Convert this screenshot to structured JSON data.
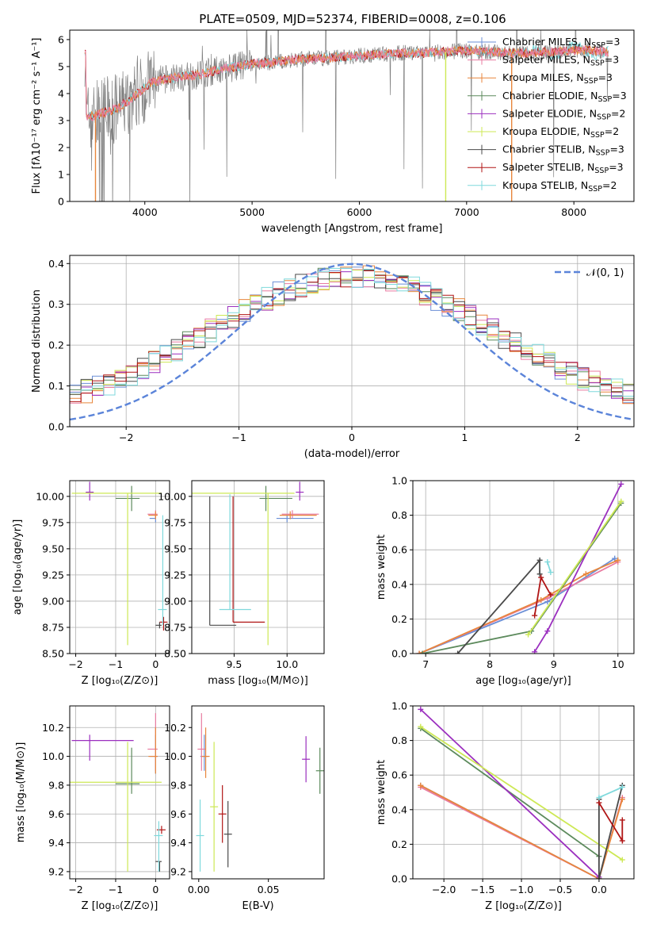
{
  "figure_title": "PLATE=0509, MJD=52374, FIBERID=0008, z=0.106",
  "colors": {
    "chabrier_miles": "#6b8fd6",
    "salpeter_miles": "#e87ba0",
    "kroupa_miles": "#e8863c",
    "chabrier_elodie": "#5c8a5c",
    "salpeter_elodie": "#9b2fbf",
    "kroupa_elodie": "#cde854",
    "chabrier_stelib": "#4a4a4a",
    "salpeter_stelib": "#b01515",
    "kroupa_stelib": "#7fd9dc",
    "data_spectrum": "#808080",
    "normal_curve": "#5b84d9",
    "grid": "#b0b0b0"
  },
  "chart_data": [
    {
      "type": "line",
      "xlabel": "wavelength [Angstrom, rest frame]",
      "ylabel": "Flux [fλ10⁻¹⁷ erg cm⁻² s⁻¹ A⁻¹]",
      "xlim": [
        3300,
        8560
      ],
      "ylim": [
        0,
        6.35
      ],
      "xticks": [
        "4000",
        "5000",
        "6000",
        "7000",
        "8000"
      ],
      "yticks": [
        "0",
        "1",
        "2",
        "3",
        "4",
        "5",
        "6"
      ],
      "grid": false,
      "legend_position": "right",
      "legend": [
        {
          "label": "Chabrier MILES, N",
          "sub": "SSP",
          "suffix": "=3",
          "key": "chabrier_miles"
        },
        {
          "label": "Salpeter MILES, N",
          "sub": "SSP",
          "suffix": "=3",
          "key": "salpeter_miles"
        },
        {
          "label": "Kroupa MILES, N",
          "sub": "SSP",
          "suffix": "=3",
          "key": "kroupa_miles"
        },
        {
          "label": "Chabrier ELODIE, N",
          "sub": "SSP",
          "suffix": "=3",
          "key": "chabrier_elodie"
        },
        {
          "label": "Salpeter ELODIE, N",
          "sub": "SSP",
          "suffix": "=2",
          "key": "salpeter_elodie"
        },
        {
          "label": "Kroupa ELODIE, N",
          "sub": "SSP",
          "suffix": "=2",
          "key": "kroupa_elodie"
        },
        {
          "label": "Chabrier STELIB, N",
          "sub": "SSP",
          "suffix": "=3",
          "key": "chabrier_stelib"
        },
        {
          "label": "Salpeter STELIB, N",
          "sub": "SSP",
          "suffix": "=3",
          "key": "salpeter_stelib"
        },
        {
          "label": "Kroupa STELIB, N",
          "sub": "SSP",
          "suffix": "=2",
          "key": "kroupa_stelib"
        }
      ],
      "continuum": {
        "x": [
          3450,
          3550,
          3650,
          3750,
          3850,
          3950,
          4050,
          4150,
          4300,
          4500,
          4700,
          4850,
          5000,
          5200,
          5400,
          5600,
          5800,
          6000,
          6200,
          6400,
          6600,
          6800,
          7000,
          7200,
          7400,
          7600,
          7800,
          8000,
          8200,
          8300
        ],
        "y": [
          3.1,
          3.2,
          3.35,
          3.45,
          3.75,
          4.05,
          4.4,
          4.5,
          4.6,
          4.7,
          4.9,
          5.0,
          5.1,
          5.15,
          5.25,
          5.3,
          5.35,
          5.4,
          5.45,
          5.5,
          5.5,
          5.55,
          5.6,
          5.55,
          5.5,
          5.5,
          5.55,
          5.6,
          5.6,
          5.55
        ]
      },
      "models_plotted": [
        "salpeter_stelib",
        "kroupa_stelib",
        "kroupa_miles",
        "salpeter_miles"
      ],
      "spikes": [
        {
          "x": 6805,
          "y": 0,
          "key": "kroupa_elodie"
        },
        {
          "x": 7420,
          "y": 0,
          "key": "kroupa_miles"
        },
        {
          "x": 3540,
          "y": 0,
          "key": "kroupa_miles"
        }
      ]
    },
    {
      "type": "histogram",
      "xlabel": "(data-model)/error",
      "ylabel": "Normed distribution",
      "xlim": [
        -2.5,
        2.5
      ],
      "ylim": [
        0,
        0.42
      ],
      "xticks": [
        "−2",
        "−1",
        "0",
        "1",
        "2"
      ],
      "yticks": [
        "0.0",
        "0.1",
        "0.2",
        "0.3",
        "0.4"
      ],
      "grid": true,
      "legend_position": "top-right",
      "legend": [
        {
          "label": "𝒩(0, 1)",
          "key": "normal_curve"
        }
      ],
      "bin_width": 0.1,
      "bins_from": -2.5,
      "series_keys": [
        "chabrier_miles",
        "salpeter_miles",
        "kroupa_miles",
        "chabrier_elodie",
        "salpeter_elodie",
        "kroupa_elodie",
        "chabrier_stelib",
        "salpeter_stelib",
        "kroupa_stelib"
      ],
      "curve": {
        "type": "normal",
        "mean": 0,
        "sigma": 1
      }
    },
    {
      "type": "errorbar",
      "xlabel": "Z [log₁₀(Z/Z⊙)]",
      "ylabel": "age  [log₁₀(age/yr)]",
      "xlim": [
        -2.15,
        0.35
      ],
      "ylim": [
        8.5,
        10.15
      ],
      "xticks": [
        "−2",
        "−1",
        "0"
      ],
      "yticks": [
        "8.50",
        "8.75",
        "9.00",
        "9.25",
        "9.50",
        "9.75",
        "10.00"
      ],
      "grid": true,
      "points": [
        {
          "key": "chabrier_miles",
          "x": 0.0,
          "y": 9.79,
          "xerr": [
            0.15,
            0.0
          ],
          "yerr": [
            0,
            0
          ]
        },
        {
          "key": "salpeter_miles",
          "x": 0.0,
          "y": 9.83,
          "xerr": [
            0.2,
            0.05
          ],
          "yerr": [
            0,
            0
          ]
        },
        {
          "key": "kroupa_miles",
          "x": 0.0,
          "y": 9.82,
          "xerr": [
            0.18,
            0.05
          ],
          "yerr": [
            0,
            0
          ]
        },
        {
          "key": "chabrier_elodie",
          "x": -0.6,
          "y": 9.98,
          "xerr": [
            0.4,
            0.2
          ],
          "yerr": [
            0.12,
            0.12
          ]
        },
        {
          "key": "salpeter_elodie",
          "x": -1.65,
          "y": 10.04,
          "xerr": [
            0,
            0
          ],
          "yerr": [
            0.08,
            0.1
          ]
        },
        {
          "key": "kroupa_elodie",
          "x": -0.7,
          "y": 10.03,
          "xerr": [
            1.4,
            0.85
          ],
          "yerr": [
            1.45,
            0.0
          ]
        },
        {
          "key": "chabrier_stelib",
          "x": 0.1,
          "y": 8.77,
          "xerr": [
            0.1,
            0.05
          ],
          "yerr": [
            0.03,
            0.03
          ]
        },
        {
          "key": "salpeter_stelib",
          "x": 0.2,
          "y": 8.8,
          "xerr": [
            0,
            0
          ],
          "yerr": [
            0.08,
            0.05
          ]
        },
        {
          "key": "kroupa_stelib",
          "x": 0.18,
          "y": 8.92,
          "xerr": [
            0.12,
            0.1
          ],
          "yerr": [
            0.15,
            0.9
          ]
        }
      ]
    },
    {
      "type": "errorbar",
      "xlabel": "mass [log₁₀(M/M⊙)]",
      "ylabel": "",
      "xlim": [
        9.1,
        10.35
      ],
      "ylim": [
        8.5,
        10.15
      ],
      "xticks": [
        "9.5",
        "10.0"
      ],
      "yticks": [
        "8.50",
        "8.75",
        "9.00",
        "9.25",
        "9.50",
        "9.75",
        "10.00"
      ],
      "grid": true,
      "points": [
        {
          "key": "chabrier_miles",
          "x": 10.0,
          "y": 9.79,
          "xerr": [
            0.1,
            0.25
          ],
          "yerr": [
            0,
            0
          ]
        },
        {
          "key": "salpeter_miles",
          "x": 10.05,
          "y": 9.83,
          "xerr": [
            0.1,
            0.25
          ],
          "yerr": [
            0,
            0
          ]
        },
        {
          "key": "kroupa_miles",
          "x": 10.03,
          "y": 9.82,
          "xerr": [
            0.1,
            0.25
          ],
          "yerr": [
            0,
            0
          ]
        },
        {
          "key": "chabrier_elodie",
          "x": 9.8,
          "y": 9.98,
          "xerr": [
            0.06,
            0.25
          ],
          "yerr": [
            0.12,
            0.12
          ]
        },
        {
          "key": "salpeter_elodie",
          "x": 10.12,
          "y": 10.04,
          "xerr": [
            0,
            0
          ],
          "yerr": [
            0.08,
            0.1
          ]
        },
        {
          "key": "kroupa_elodie",
          "x": 9.82,
          "y": 10.03,
          "xerr": [
            0.72,
            0.25
          ],
          "yerr": [
            1.45,
            0.0
          ]
        },
        {
          "key": "chabrier_stelib",
          "x": 9.27,
          "y": 8.77,
          "xerr": [
            0.0,
            0.25
          ],
          "yerr": [
            0.0,
            1.23
          ]
        },
        {
          "key": "salpeter_stelib",
          "x": 9.49,
          "y": 8.8,
          "xerr": [
            0.0,
            0.3
          ],
          "yerr": [
            0.0,
            1.2
          ]
        },
        {
          "key": "kroupa_stelib",
          "x": 9.46,
          "y": 8.92,
          "xerr": [
            0.1,
            0.2
          ],
          "yerr": [
            0.0,
            1.1
          ]
        }
      ]
    },
    {
      "type": "line",
      "xlabel": "age  [log₁₀(age/yr)]",
      "ylabel": "mass weight",
      "xlim": [
        6.8,
        10.25
      ],
      "ylim": [
        0,
        1.0
      ],
      "xticks": [
        "7",
        "8",
        "9",
        "10"
      ],
      "yticks": [
        "0.0",
        "0.2",
        "0.4",
        "0.6",
        "0.8",
        "1.0"
      ],
      "grid": true,
      "series": [
        {
          "key": "chabrier_miles",
          "x": [
            6.9,
            8.9,
            9.95
          ],
          "y": [
            0.0,
            0.3,
            0.55
          ]
        },
        {
          "key": "salpeter_miles",
          "x": [
            6.9,
            8.9,
            10.0
          ],
          "y": [
            0.0,
            0.32,
            0.53
          ]
        },
        {
          "key": "kroupa_miles",
          "x": [
            6.9,
            8.8,
            9.5,
            10.0
          ],
          "y": [
            0.0,
            0.31,
            0.46,
            0.54
          ]
        },
        {
          "key": "chabrier_elodie",
          "x": [
            6.95,
            8.65,
            10.05
          ],
          "y": [
            0.0,
            0.13,
            0.87
          ]
        },
        {
          "key": "salpeter_elodie",
          "x": [
            8.7,
            8.9,
            10.05
          ],
          "y": [
            0.01,
            0.13,
            0.98
          ]
        },
        {
          "key": "kroupa_elodie",
          "x": [
            8.6,
            10.05
          ],
          "y": [
            0.11,
            0.88
          ]
        },
        {
          "key": "chabrier_stelib",
          "x": [
            7.5,
            8.78,
            8.78
          ],
          "y": [
            0.0,
            0.54,
            0.46
          ]
        },
        {
          "key": "salpeter_stelib",
          "x": [
            8.7,
            8.8,
            8.95
          ],
          "y": [
            0.22,
            0.44,
            0.34
          ]
        },
        {
          "key": "kroupa_stelib",
          "x": [
            8.9,
            8.95
          ],
          "y": [
            0.53,
            0.47
          ]
        }
      ]
    },
    {
      "type": "errorbar",
      "xlabel": "Z [log₁₀(Z/Z⊙)]",
      "ylabel": "mass [log₁₀(M/M⊙)]",
      "xlim": [
        -2.15,
        0.35
      ],
      "ylim": [
        9.15,
        10.35
      ],
      "xticks": [
        "−2",
        "−1",
        "0"
      ],
      "yticks": [
        "9.2",
        "9.4",
        "9.6",
        "9.8",
        "10.0",
        "10.2"
      ],
      "grid": true,
      "points": [
        {
          "key": "chabrier_miles",
          "x": 0.0,
          "y": 10.0,
          "xerr": [
            0.15,
            0.05
          ],
          "yerr": [
            0.12,
            0.15
          ]
        },
        {
          "key": "salpeter_miles",
          "x": 0.0,
          "y": 10.05,
          "xerr": [
            0.2,
            0.05
          ],
          "yerr": [
            0.15,
            0.25
          ]
        },
        {
          "key": "kroupa_miles",
          "x": 0.0,
          "y": 10.0,
          "xerr": [
            0.18,
            0.05
          ],
          "yerr": [
            0.12,
            0.2
          ]
        },
        {
          "key": "chabrier_elodie",
          "x": -0.6,
          "y": 9.81,
          "xerr": [
            0.4,
            0.2
          ],
          "yerr": [
            0.07,
            0.25
          ]
        },
        {
          "key": "salpeter_elodie",
          "x": -1.65,
          "y": 10.11,
          "xerr": [
            0.45,
            1.1
          ],
          "yerr": [
            0.14,
            0.04
          ]
        },
        {
          "key": "kroupa_elodie",
          "x": -0.7,
          "y": 9.82,
          "xerr": [
            1.45,
            0.85
          ],
          "yerr": [
            0.62,
            0.28
          ]
        },
        {
          "key": "chabrier_stelib",
          "x": 0.1,
          "y": 9.27,
          "xerr": [
            0.1,
            0.05
          ],
          "yerr": [
            0.07,
            0.0
          ]
        },
        {
          "key": "salpeter_stelib",
          "x": 0.15,
          "y": 9.49,
          "xerr": [
            0.12,
            0.1
          ],
          "yerr": [
            0,
            0
          ]
        },
        {
          "key": "kroupa_stelib",
          "x": 0.08,
          "y": 9.45,
          "xerr": [
            0.12,
            0.1
          ],
          "yerr": [
            0.25,
            0.1
          ]
        }
      ]
    },
    {
      "type": "errorbar",
      "xlabel": "E(B-V)",
      "ylabel": "",
      "xlim": [
        -0.005,
        0.09
      ],
      "ylim": [
        9.15,
        10.35
      ],
      "xticks": [
        "0.00",
        "0.05"
      ],
      "yticks": [
        "9.2",
        "9.4",
        "9.6",
        "9.8",
        "10.0",
        "10.2"
      ],
      "grid": false,
      "points": [
        {
          "key": "chabrier_miles",
          "x": 0.004,
          "y": 10.0,
          "xerr": [
            0,
            0
          ],
          "yerr": [
            0.1,
            0.15
          ]
        },
        {
          "key": "salpeter_miles",
          "x": 0.002,
          "y": 10.05,
          "xerr": [
            0,
            0
          ],
          "yerr": [
            0.15,
            0.25
          ]
        },
        {
          "key": "kroupa_miles",
          "x": 0.005,
          "y": 10.0,
          "xerr": [
            0,
            0
          ],
          "yerr": [
            0.15,
            0.2
          ]
        },
        {
          "key": "chabrier_elodie",
          "x": 0.087,
          "y": 9.9,
          "xerr": [
            0,
            0
          ],
          "yerr": [
            0.16,
            0.16
          ]
        },
        {
          "key": "salpeter_elodie",
          "x": 0.077,
          "y": 9.98,
          "xerr": [
            0,
            0
          ],
          "yerr": [
            0.16,
            0.16
          ]
        },
        {
          "key": "kroupa_elodie",
          "x": 0.011,
          "y": 9.65,
          "xerr": [
            0,
            0
          ],
          "yerr": [
            0.45,
            0.45
          ]
        },
        {
          "key": "chabrier_stelib",
          "x": 0.021,
          "y": 9.46,
          "xerr": [
            0,
            0
          ],
          "yerr": [
            0.23,
            0.23
          ]
        },
        {
          "key": "salpeter_stelib",
          "x": 0.017,
          "y": 9.6,
          "xerr": [
            0,
            0
          ],
          "yerr": [
            0.2,
            0.2
          ]
        },
        {
          "key": "kroupa_stelib",
          "x": 0.001,
          "y": 9.45,
          "xerr": [
            0,
            0
          ],
          "yerr": [
            0.25,
            0.25
          ]
        }
      ]
    },
    {
      "type": "line",
      "xlabel": "Z [log₁₀(Z/Z⊙)]",
      "ylabel": "mass weight",
      "xlim": [
        -2.4,
        0.45
      ],
      "ylim": [
        0,
        1.0
      ],
      "xticks": [
        "−2.0",
        "−1.5",
        "−1.0",
        "−0.5",
        "0.0"
      ],
      "yticks": [
        "0.0",
        "0.2",
        "0.4",
        "0.6",
        "0.8",
        "1.0"
      ],
      "grid": true,
      "series": [
        {
          "key": "chabrier_miles",
          "x": [
            -2.3,
            0.0
          ],
          "y": [
            0.54,
            0.0
          ]
        },
        {
          "key": "salpeter_miles",
          "x": [
            -2.3,
            0.0,
            0.3
          ],
          "y": [
            0.53,
            0.0,
            0.47
          ]
        },
        {
          "key": "kroupa_miles",
          "x": [
            -2.3,
            0.0,
            0.3
          ],
          "y": [
            0.54,
            0.0,
            0.46
          ]
        },
        {
          "key": "chabrier_elodie",
          "x": [
            -2.3,
            0.0
          ],
          "y": [
            0.87,
            0.13
          ]
        },
        {
          "key": "salpeter_elodie",
          "x": [
            -2.3,
            0.0
          ],
          "y": [
            0.98,
            0.01
          ]
        },
        {
          "key": "kroupa_elodie",
          "x": [
            -2.3,
            0.3
          ],
          "y": [
            0.88,
            0.11
          ]
        },
        {
          "key": "chabrier_stelib",
          "x": [
            0.0,
            0.0,
            0.3
          ],
          "y": [
            0.46,
            0.0,
            0.54
          ]
        },
        {
          "key": "salpeter_stelib",
          "x": [
            0.0,
            0.3,
            0.3
          ],
          "y": [
            0.44,
            0.22,
            0.34
          ]
        },
        {
          "key": "kroupa_stelib",
          "x": [
            0.0,
            0.3
          ],
          "y": [
            0.47,
            0.53
          ]
        }
      ]
    }
  ]
}
